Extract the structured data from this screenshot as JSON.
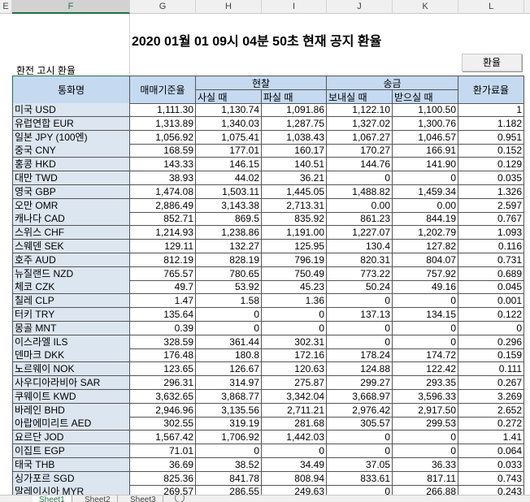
{
  "columns": [
    "E",
    "F",
    "G",
    "H",
    "I",
    "J",
    "K",
    "L"
  ],
  "selected_column": "F",
  "title": "2020 01월 01 09시 04분 50초 현재 공지 환율",
  "subtitle": "환전 고시 환율",
  "button_label": "환율",
  "headers": {
    "currency": "통화명",
    "base_rate": "매매기준율",
    "cash": "현찰",
    "cash_buy": "사실 때",
    "cash_sell": "파실 때",
    "transfer": "송금",
    "send": "보내실 때",
    "receive": "받으실 때",
    "usd_rate": "환가료율"
  },
  "rows": [
    [
      "미국 USD",
      "1,111.30",
      "1,130.74",
      "1,091.86",
      "1,122.10",
      "1,100.50",
      "1"
    ],
    [
      "유럽연합 EUR",
      "1,313.89",
      "1,340.03",
      "1,287.75",
      "1,327.02",
      "1,300.76",
      "1.182"
    ],
    [
      "일본 JPY (100엔)",
      "1,056.92",
      "1,075.41",
      "1,038.43",
      "1,067.27",
      "1,046.57",
      "0.951"
    ],
    [
      "중국 CNY",
      "168.59",
      "177.01",
      "160.17",
      "170.27",
      "166.91",
      "0.152"
    ],
    [
      "홍콩 HKD",
      "143.33",
      "146.15",
      "140.51",
      "144.76",
      "141.90",
      "0.129"
    ],
    [
      "대만 TWD",
      "38.93",
      "44.02",
      "36.21",
      "0",
      "0",
      "0.035"
    ],
    [
      "영국 GBP",
      "1,474.08",
      "1,503.11",
      "1,445.05",
      "1,488.82",
      "1,459.34",
      "1.326"
    ],
    [
      "오만 OMR",
      "2,886.49",
      "3,143.38",
      "2,713.31",
      "0.00",
      "0.00",
      "2.597"
    ],
    [
      "캐나다 CAD",
      "852.71",
      "869.5",
      "835.92",
      "861.23",
      "844.19",
      "0.767"
    ],
    [
      "스위스 CHF",
      "1,214.93",
      "1,238.86",
      "1,191.00",
      "1,227.07",
      "1,202.79",
      "1.093"
    ],
    [
      "스웨덴 SEK",
      "129.11",
      "132.27",
      "125.95",
      "130.4",
      "127.82",
      "0.116"
    ],
    [
      "호주 AUD",
      "812.19",
      "828.19",
      "796.19",
      "820.31",
      "804.07",
      "0.731"
    ],
    [
      "뉴질랜드 NZD",
      "765.57",
      "780.65",
      "750.49",
      "773.22",
      "757.92",
      "0.689"
    ],
    [
      "체코 CZK",
      "49.7",
      "53.92",
      "45.23",
      "50.24",
      "49.16",
      "0.045"
    ],
    [
      "칠레 CLP",
      "1.47",
      "1.58",
      "1.36",
      "0",
      "0",
      "0.001"
    ],
    [
      "터키 TRY",
      "135.64",
      "0",
      "0",
      "137.13",
      "134.15",
      "0.122"
    ],
    [
      "몽골 MNT",
      "0.39",
      "0",
      "0",
      "0",
      "0",
      "0"
    ],
    [
      "이스라엘 ILS",
      "328.59",
      "361.44",
      "302.31",
      "0",
      "0",
      "0.296"
    ],
    [
      "덴마크 DKK",
      "176.48",
      "180.8",
      "172.16",
      "178.24",
      "174.72",
      "0.159"
    ],
    [
      "노르웨이 NOK",
      "123.65",
      "126.67",
      "120.63",
      "124.88",
      "122.42",
      "0.111"
    ],
    [
      "사우디아라비아 SAR",
      "296.31",
      "314.97",
      "275.87",
      "299.27",
      "293.35",
      "0.267"
    ],
    [
      "쿠웨이트 KWD",
      "3,632.65",
      "3,868.77",
      "3,342.04",
      "3,668.97",
      "3,596.33",
      "3.269"
    ],
    [
      "바레인 BHD",
      "2,946.96",
      "3,135.56",
      "2,711.21",
      "2,976.42",
      "2,917.50",
      "2.652"
    ],
    [
      "아랍에미리트 AED",
      "302.55",
      "319.19",
      "281.68",
      "305.57",
      "299.53",
      "0.272"
    ],
    [
      "요르단 JOD",
      "1,567.42",
      "1,706.92",
      "1,442.03",
      "0",
      "0",
      "1.41"
    ],
    [
      "이집트 EGP",
      "71.01",
      "0",
      "0",
      "0",
      "0",
      "0.064"
    ],
    [
      "태국 THB",
      "36.69",
      "38.52",
      "34.49",
      "37.05",
      "36.33",
      "0.033"
    ],
    [
      "싱가포르 SGD",
      "825.36",
      "841.78",
      "808.94",
      "833.61",
      "817.11",
      "0.743"
    ],
    [
      "말레이시아 MYR",
      "269.57",
      "286.55",
      "249.63",
      "0",
      "266.88",
      "0.243"
    ]
  ],
  "sheet_tabs": [
    "Sheet1",
    "Sheet2",
    "Sheet3"
  ],
  "colors": {
    "header_fill": "#c5d9f1",
    "name_fill": "#dce6f1",
    "excel_green": "#217346"
  }
}
